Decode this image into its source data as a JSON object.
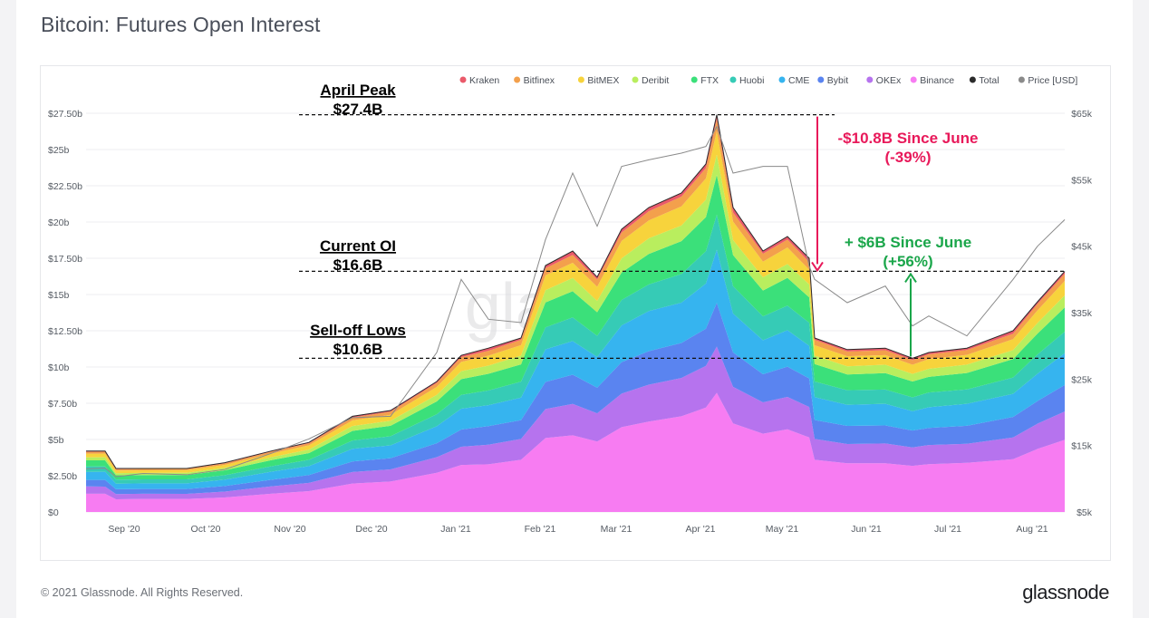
{
  "page": {
    "title": "Bitcoin: Futures Open Interest",
    "footer_copyright": "© 2021 Glassnode. All Rights Reserved.",
    "footer_logo": "glassnode",
    "watermark": "glassnode"
  },
  "colors": {
    "Kraken": "#ea5a6a",
    "Bitfinex": "#f3a04c",
    "BitMEX": "#f7d33c",
    "Deribit": "#b9ee5e",
    "FTX": "#3be07a",
    "Huobi": "#36cbb6",
    "CME": "#36b4ef",
    "Bybit": "#5a84f0",
    "OKEx": "#b673ee",
    "Binance": "#f77cf2",
    "Total": "#2b2b2b",
    "Price": "#8a8a8a",
    "red_annotation": "#e8195a",
    "green_annotation": "#1aa64a"
  },
  "chart_data": {
    "type": "area",
    "stacked": true,
    "title": "Bitcoin: Futures Open Interest",
    "x_ticks": [
      "Sep '20",
      "Oct '20",
      "Nov '20",
      "Dec '20",
      "Jan '21",
      "Feb '21",
      "Mar '21",
      "Apr '21",
      "May '21",
      "Jun '21",
      "Jul '21",
      "Aug '21"
    ],
    "y_left_ticks": [
      "$0",
      "$2.50b",
      "$5b",
      "$7.50b",
      "$10b",
      "$12.50b",
      "$15b",
      "$17.50b",
      "$20b",
      "$22.50b",
      "$25b",
      "$27.50b"
    ],
    "y_left_range": [
      0,
      27.5
    ],
    "y_right_ticks": [
      "$5k",
      "$15k",
      "$25k",
      "$35k",
      "$45k",
      "$55k",
      "$65k"
    ],
    "y_right_range": [
      5000,
      65000
    ],
    "legend_position": "top-right",
    "legend": [
      "Kraken",
      "Bitfinex",
      "BitMEX",
      "Deribit",
      "FTX",
      "Huobi",
      "CME",
      "Bybit",
      "OKEx",
      "Binance",
      "Total",
      "Price [USD]"
    ],
    "grid": "horizontal",
    "x": [
      "2020-08-25",
      "2020-09-01",
      "2020-09-05",
      "2020-09-15",
      "2020-10-01",
      "2020-10-15",
      "2020-11-01",
      "2020-11-15",
      "2020-12-01",
      "2020-12-15",
      "2021-01-01",
      "2021-01-10",
      "2021-01-20",
      "2021-02-01",
      "2021-02-10",
      "2021-02-20",
      "2021-03-01",
      "2021-03-10",
      "2021-03-20",
      "2021-04-01",
      "2021-04-10",
      "2021-04-14",
      "2021-04-20",
      "2021-05-01",
      "2021-05-10",
      "2021-05-18",
      "2021-05-20",
      "2021-06-01",
      "2021-06-15",
      "2021-06-25",
      "2021-07-01",
      "2021-07-15",
      "2021-08-01",
      "2021-08-10",
      "2021-08-20"
    ],
    "total_oi": [
      4.2,
      4.2,
      3.0,
      3.0,
      3.0,
      3.4,
      4.2,
      4.8,
      6.6,
      7.0,
      9.0,
      10.8,
      11.3,
      12.0,
      17.0,
      18.0,
      16.2,
      19.5,
      21.0,
      22.0,
      24.0,
      27.4,
      21.0,
      18.0,
      19.0,
      17.5,
      12.0,
      11.2,
      11.3,
      10.6,
      11.0,
      11.3,
      12.5,
      14.5,
      16.6
    ],
    "price_usd": [
      11500,
      11600,
      10300,
      10800,
      10600,
      11400,
      13800,
      16000,
      19200,
      19400,
      29000,
      40000,
      34000,
      33500,
      46000,
      56000,
      48000,
      57000,
      58000,
      59000,
      60000,
      63000,
      56000,
      57000,
      57000,
      42000,
      40000,
      36500,
      39000,
      33000,
      34500,
      31500,
      40000,
      45000,
      49000
    ],
    "series_fraction_of_total": [
      {
        "name": "Binance",
        "share": 0.3
      },
      {
        "name": "OKEx",
        "share": 0.12
      },
      {
        "name": "Bybit",
        "share": 0.11
      },
      {
        "name": "CME",
        "share": 0.13
      },
      {
        "name": "Huobi",
        "share": 0.09
      },
      {
        "name": "FTX",
        "share": 0.1
      },
      {
        "name": "Deribit",
        "share": 0.05
      },
      {
        "name": "BitMEX",
        "share": 0.06
      },
      {
        "name": "Bitfinex",
        "share": 0.03
      },
      {
        "name": "Kraken",
        "share": 0.01
      }
    ],
    "annotations": [
      {
        "id": "april-peak",
        "title": "April Peak",
        "value": "$27.4B",
        "y": 27.4
      },
      {
        "id": "current-oi",
        "title": "Current OI",
        "value": "$16.6B",
        "y": 16.6
      },
      {
        "id": "selloff-lows",
        "title": "Sell-off Lows",
        "value": "$10.6B",
        "y": 10.6
      },
      {
        "id": "red-change",
        "line1": "-$10.8B Since June",
        "line2": "(-39%)"
      },
      {
        "id": "green-change",
        "line1": "+ $6B Since June",
        "line2": "(+56%)"
      }
    ]
  }
}
